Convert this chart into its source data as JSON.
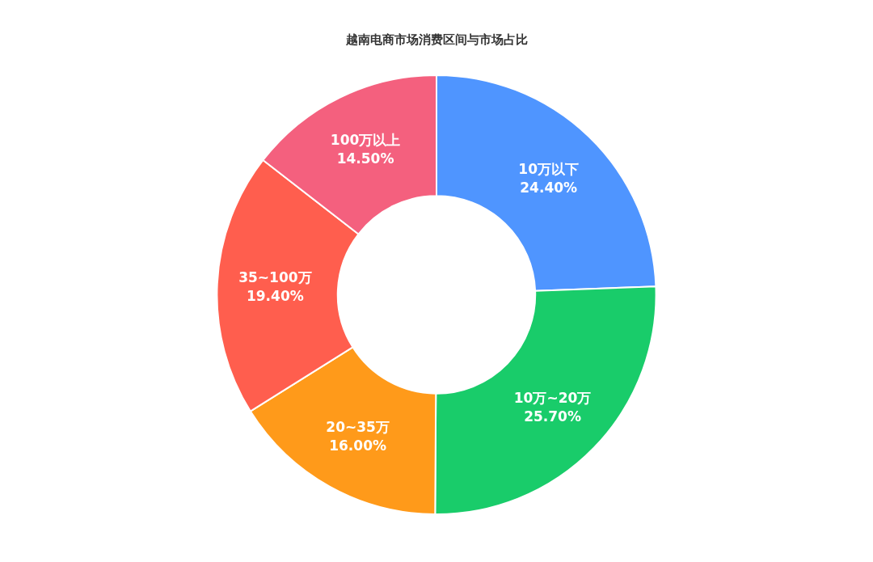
{
  "chart_data": {
    "type": "donut",
    "title": "越南电商市场消费区间与市场占比",
    "categories": [
      "10万以下",
      "10万~20万",
      "20~35万",
      "35~100万",
      "100万以上"
    ],
    "values": [
      24.4,
      25.7,
      16.0,
      19.4,
      14.5
    ],
    "value_labels": [
      "24.40%",
      "25.70%",
      "16.00%",
      "19.40%",
      "14.50%"
    ],
    "colors": [
      "#4f95ff",
      "#19cc6a",
      "#ff9a1a",
      "#ff5e4e",
      "#f4607e"
    ],
    "legend": false
  }
}
